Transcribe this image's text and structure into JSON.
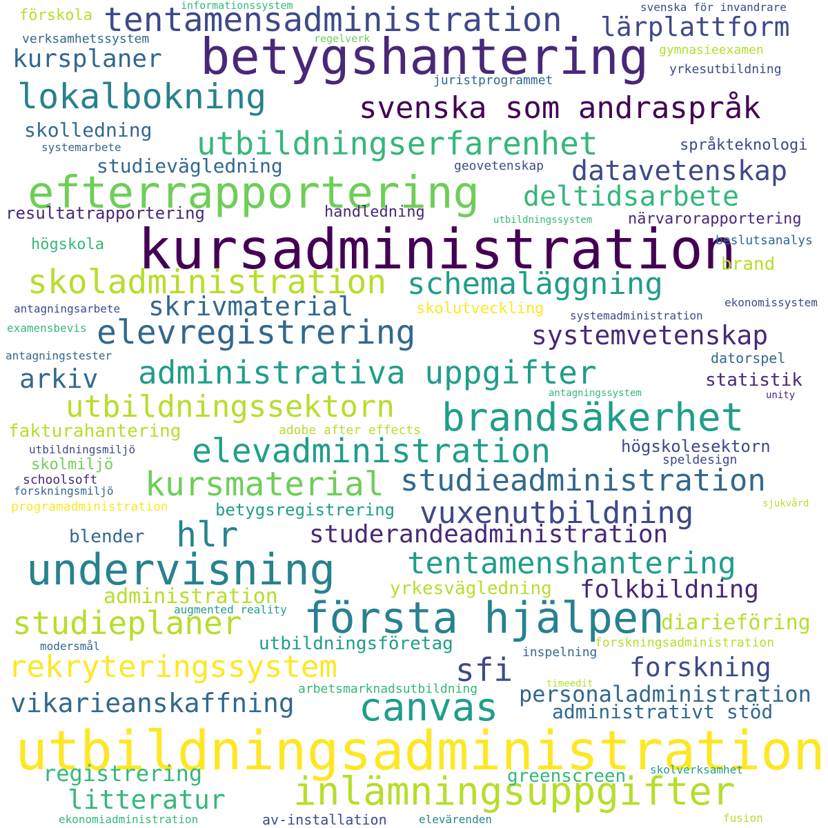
{
  "palette": {
    "yellow": "#fde725",
    "lime": "#b5de2b",
    "green": "#6ece58",
    "mint": "#35b779",
    "teal": "#1f9e89",
    "blue_green": "#26828e",
    "blue": "#31688e",
    "indigo": "#3e4989",
    "purple": "#482878",
    "dark_purple": "#440154"
  },
  "words": [
    {
      "text": "utbildningsadministration",
      "color": "yellow"
    },
    {
      "text": "kursadministration",
      "color": "dark_purple"
    },
    {
      "text": "betygshantering",
      "color": "purple"
    },
    {
      "text": "efterrapportering",
      "color": "green"
    },
    {
      "text": "undervisning",
      "color": "blue_green"
    },
    {
      "text": "första hjälpen",
      "color": "blue_green"
    },
    {
      "text": "inlämningsuppgifter",
      "color": "lime"
    },
    {
      "text": "brandsäkerhet",
      "color": "teal"
    },
    {
      "text": "elevregistrering",
      "color": "blue"
    },
    {
      "text": "tentamensadministration",
      "color": "indigo"
    },
    {
      "text": "skoladministration",
      "color": "lime"
    },
    {
      "text": "elevadministration",
      "color": "teal"
    },
    {
      "text": "utbildningserfarenhet",
      "color": "mint"
    },
    {
      "text": "administrativa uppgifter",
      "color": "teal"
    },
    {
      "text": "lokalbokning",
      "color": "blue_green"
    },
    {
      "text": "svenska som andraspråk",
      "color": "dark_purple"
    },
    {
      "text": "utbildningssektorn",
      "color": "lime"
    },
    {
      "text": "rekryteringssystem",
      "color": "yellow"
    },
    {
      "text": "tentamenshantering",
      "color": "teal"
    },
    {
      "text": "studieadministration",
      "color": "blue"
    },
    {
      "text": "schemaläggning",
      "color": "teal"
    },
    {
      "text": "canvas",
      "color": "teal"
    },
    {
      "text": "kursmaterial",
      "color": "green"
    },
    {
      "text": "studieplaner",
      "color": "lime"
    },
    {
      "text": "vuxenutbildning",
      "color": "indigo"
    },
    {
      "text": "datavetenskap",
      "color": "indigo"
    },
    {
      "text": "deltidsarbete",
      "color": "mint"
    },
    {
      "text": "systemvetenskap",
      "color": "purple"
    },
    {
      "text": "vikarieanskaffning",
      "color": "blue"
    },
    {
      "text": "hlr",
      "color": "blue_green"
    },
    {
      "text": "sfi",
      "color": "indigo"
    },
    {
      "text": "litteratur",
      "color": "mint"
    },
    {
      "text": "studerandeadministration",
      "color": "purple"
    },
    {
      "text": "kursplaner",
      "color": "blue"
    },
    {
      "text": "lärplattform",
      "color": "indigo"
    },
    {
      "text": "arkiv",
      "color": "blue"
    },
    {
      "text": "skrivmaterial",
      "color": "blue"
    },
    {
      "text": "folkbildning",
      "color": "purple"
    },
    {
      "text": "forskning",
      "color": "indigo"
    },
    {
      "text": "personaladministration",
      "color": "blue"
    },
    {
      "text": "registrering",
      "color": "mint"
    },
    {
      "text": "administration",
      "color": "lime"
    },
    {
      "text": "studievägledning",
      "color": "blue"
    },
    {
      "text": "diarieföring",
      "color": "lime"
    },
    {
      "text": "yrkesvägledning",
      "color": "lime"
    },
    {
      "text": "skolledning",
      "color": "blue"
    },
    {
      "text": "fakturahantering",
      "color": "lime"
    },
    {
      "text": "betygsregistrering",
      "color": "teal"
    },
    {
      "text": "utbildningsföretag",
      "color": "teal"
    },
    {
      "text": "administrativt stöd",
      "color": "blue"
    },
    {
      "text": "greenscreen",
      "color": "mint"
    },
    {
      "text": "högskolesektorn",
      "color": "indigo"
    },
    {
      "text": "statistik",
      "color": "purple"
    },
    {
      "text": "blender",
      "color": "blue"
    },
    {
      "text": "resultatrapportering",
      "color": "purple"
    },
    {
      "text": "skolmiljö",
      "color": "green"
    },
    {
      "text": "närvarorapportering",
      "color": "purple"
    },
    {
      "text": "språkteknologi",
      "color": "indigo"
    },
    {
      "text": "handledning",
      "color": "purple"
    },
    {
      "text": "brand",
      "color": "lime"
    },
    {
      "text": "skolutveckling",
      "color": "yellow"
    },
    {
      "text": "av-installation",
      "color": "indigo"
    },
    {
      "text": "datorspel",
      "color": "blue"
    },
    {
      "text": "högskola",
      "color": "mint"
    },
    {
      "text": "beslutsanalys",
      "color": "blue"
    },
    {
      "text": "yrkesutbildning",
      "color": "indigo"
    },
    {
      "text": "förskola",
      "color": "lime"
    },
    {
      "text": "adobe after effects",
      "color": "lime"
    },
    {
      "text": "inspelning",
      "color": "blue"
    },
    {
      "text": "gymnasieexamen",
      "color": "lime"
    },
    {
      "text": "geovetenskap",
      "color": "indigo"
    },
    {
      "text": "svenska för invandrare",
      "color": "indigo"
    },
    {
      "text": "programadministration",
      "color": "yellow"
    },
    {
      "text": "verksamhetssystem",
      "color": "blue"
    },
    {
      "text": "juristprogrammet",
      "color": "blue"
    },
    {
      "text": "systemarbete",
      "color": "blue"
    },
    {
      "text": "antagningsarbete",
      "color": "indigo"
    },
    {
      "text": "antagningstester",
      "color": "blue"
    },
    {
      "text": "utbildningsmiljö",
      "color": "indigo"
    },
    {
      "text": "schoolsoft",
      "color": "purple"
    },
    {
      "text": "forskningsmiljö",
      "color": "blue"
    },
    {
      "text": "modersmål",
      "color": "blue"
    },
    {
      "text": "augmented reality",
      "color": "teal"
    },
    {
      "text": "forskningsadministration",
      "color": "lime"
    },
    {
      "text": "speldesign",
      "color": "indigo"
    },
    {
      "text": "arbetsmarknadsutbildning",
      "color": "mint"
    },
    {
      "text": "ekonomiadministration",
      "color": "mint"
    },
    {
      "text": "elevärenden",
      "color": "blue_green"
    },
    {
      "text": "fusion",
      "color": "lime"
    },
    {
      "text": "skolverksamhet",
      "color": "teal"
    },
    {
      "text": "systemadministration",
      "color": "indigo"
    },
    {
      "text": "ekonomissystem",
      "color": "indigo"
    },
    {
      "text": "examensbevis",
      "color": "mint"
    },
    {
      "text": "informationssystem",
      "color": "mint"
    },
    {
      "text": "regelverk",
      "color": "green"
    },
    {
      "text": "utbildningssystem",
      "color": "mint"
    },
    {
      "text": "antagningssystem",
      "color": "mint"
    },
    {
      "text": "unity",
      "color": "purple"
    },
    {
      "text": "sjukvård",
      "color": "lime"
    },
    {
      "text": "timeedit",
      "color": "lime"
    }
  ]
}
